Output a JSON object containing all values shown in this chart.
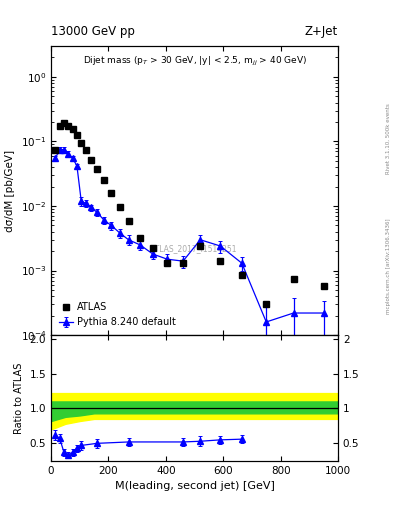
{
  "title_left": "13000 GeV pp",
  "title_right": "Z+Jet",
  "annotation": "Dijet mass (p$_{T}$ > 30 GeV, |y| < 2.5, m$_{jj}$ > 40 GeV)",
  "watermark": "ATLAS_2017_I1514251",
  "right_label": "Rivet 3.1.10, 500k events",
  "right_label2": "mcplots.cern.ch [arXiv:1306.3436]",
  "xlabel": "M(leading, second jet) [GeV]",
  "ylabel": "dσ/dM [pb/GeV]",
  "ylabel_ratio": "Ratio to ATLAS",
  "atlas_x": [
    15,
    30,
    45,
    60,
    75,
    90,
    105,
    120,
    140,
    160,
    185,
    210,
    240,
    270,
    310,
    355,
    405,
    460,
    520,
    590,
    665,
    750,
    845,
    950
  ],
  "atlas_y": [
    0.075,
    0.175,
    0.195,
    0.175,
    0.155,
    0.125,
    0.095,
    0.075,
    0.052,
    0.038,
    0.025,
    0.016,
    0.0095,
    0.0058,
    0.0032,
    0.0022,
    0.0013,
    0.0013,
    0.0024,
    0.0014,
    0.00085,
    0.0003,
    0.00075,
    0.00058
  ],
  "pythia_x": [
    15,
    30,
    45,
    60,
    75,
    90,
    105,
    120,
    140,
    160,
    185,
    210,
    240,
    270,
    310,
    355,
    405,
    460,
    520,
    590,
    665,
    750,
    845,
    950
  ],
  "pythia_y": [
    0.055,
    0.075,
    0.075,
    0.065,
    0.055,
    0.042,
    0.012,
    0.011,
    0.0095,
    0.008,
    0.006,
    0.005,
    0.0038,
    0.003,
    0.0025,
    0.0018,
    0.0015,
    0.0014,
    0.003,
    0.0024,
    0.0013,
    0.00016,
    0.00022,
    0.00022
  ],
  "pythia_yerr_lo": [
    0.005,
    0.006,
    0.006,
    0.005,
    0.004,
    0.003,
    0.002,
    0.0015,
    0.001,
    0.001,
    0.0008,
    0.0007,
    0.0006,
    0.0005,
    0.0004,
    0.0003,
    0.0003,
    0.0003,
    0.0006,
    0.0005,
    0.0003,
    0.00012,
    0.00015,
    0.00012
  ],
  "pythia_yerr_hi": [
    0.005,
    0.006,
    0.006,
    0.005,
    0.004,
    0.003,
    0.002,
    0.0015,
    0.001,
    0.001,
    0.0008,
    0.0007,
    0.0006,
    0.0005,
    0.0004,
    0.0003,
    0.0003,
    0.0003,
    0.0006,
    0.0005,
    0.0003,
    0.00012,
    0.00015,
    0.00012
  ],
  "ratio_x": [
    15,
    30,
    45,
    60,
    75,
    90,
    105,
    160,
    270,
    460,
    520,
    590,
    665
  ],
  "ratio_y": [
    0.62,
    0.57,
    0.37,
    0.33,
    0.37,
    0.43,
    0.47,
    0.5,
    0.52,
    0.52,
    0.53,
    0.55,
    0.56
  ],
  "ratio_yerr_lo": [
    0.07,
    0.07,
    0.05,
    0.04,
    0.05,
    0.05,
    0.06,
    0.06,
    0.06,
    0.06,
    0.07,
    0.06,
    0.06
  ],
  "ratio_yerr_hi": [
    0.07,
    0.07,
    0.05,
    0.04,
    0.05,
    0.05,
    0.06,
    0.06,
    0.06,
    0.06,
    0.07,
    0.06,
    0.06
  ],
  "band_green_lo_x": [
    0,
    50,
    100,
    150,
    200,
    300,
    400,
    500,
    600,
    700,
    800,
    900,
    1000
  ],
  "band_green_lo_y": [
    0.82,
    0.88,
    0.9,
    0.93,
    0.93,
    0.93,
    0.93,
    0.93,
    0.93,
    0.93,
    0.93,
    0.93,
    0.93
  ],
  "band_green_hi_x": [
    0,
    50,
    100,
    150,
    200,
    300,
    400,
    500,
    600,
    700,
    800,
    900,
    1000
  ],
  "band_green_hi_y": [
    1.1,
    1.1,
    1.1,
    1.1,
    1.1,
    1.1,
    1.1,
    1.1,
    1.1,
    1.1,
    1.1,
    1.1,
    1.1
  ],
  "band_yellow_lo_x": [
    0,
    50,
    100,
    150,
    200,
    300,
    400,
    500,
    600,
    700,
    800,
    900,
    1000
  ],
  "band_yellow_lo_y": [
    0.7,
    0.78,
    0.82,
    0.85,
    0.85,
    0.85,
    0.85,
    0.85,
    0.85,
    0.85,
    0.85,
    0.85,
    0.85
  ],
  "band_yellow_hi_x": [
    0,
    50,
    100,
    150,
    200,
    300,
    400,
    500,
    600,
    700,
    800,
    900,
    1000
  ],
  "band_yellow_hi_y": [
    1.22,
    1.22,
    1.22,
    1.22,
    1.22,
    1.22,
    1.22,
    1.22,
    1.22,
    1.22,
    1.22,
    1.22,
    1.22
  ],
  "xlim": [
    0,
    1000
  ],
  "ylim_log": [
    0.0001,
    3.0
  ],
  "ylim_ratio": [
    0.25,
    2.05
  ],
  "ratio_yticks": [
    0.5,
    1.0,
    1.5,
    2.0
  ],
  "atlas_color": "#000000",
  "pythia_color": "#0000ff",
  "atlas_marker": "s",
  "pythia_marker": "^",
  "bg_color": "#ffffff"
}
